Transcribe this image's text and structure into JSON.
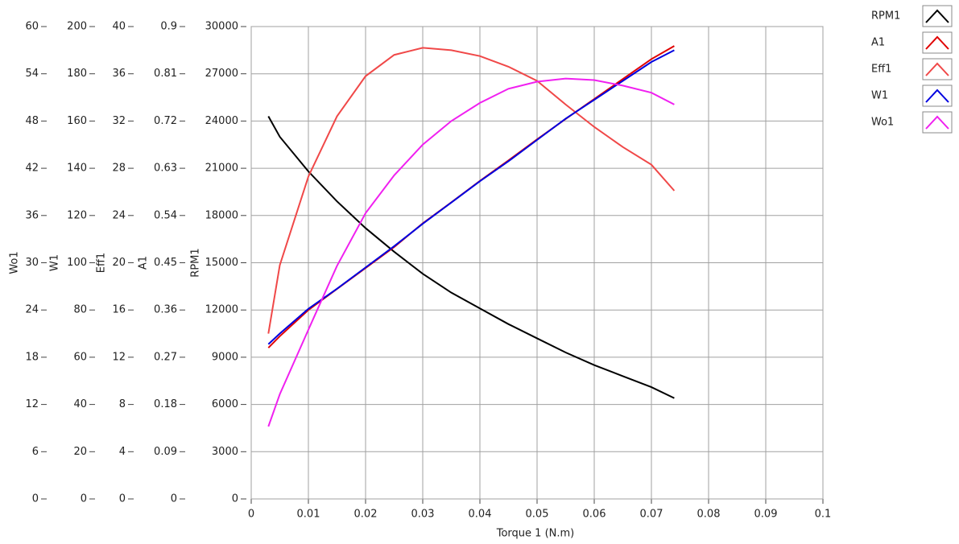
{
  "chart_data": {
    "type": "line",
    "xlabel": "Torque 1 (N.m)",
    "x": [
      0.003,
      0.005,
      0.01,
      0.015,
      0.02,
      0.025,
      0.03,
      0.035,
      0.04,
      0.045,
      0.05,
      0.055,
      0.06,
      0.065,
      0.07,
      0.074
    ],
    "xlim": [
      0,
      0.1
    ],
    "xticks": [
      0,
      0.01,
      0.02,
      0.03,
      0.04,
      0.05,
      0.06,
      0.07,
      0.08,
      0.09,
      0.1
    ],
    "grid": true,
    "legend": "right",
    "y_axes": [
      {
        "label": "Wo1",
        "ylim": [
          0,
          60
        ],
        "yticks": [
          0,
          6,
          12,
          18,
          24,
          30,
          36,
          42,
          48,
          54,
          60
        ]
      },
      {
        "label": "W1",
        "ylim": [
          0,
          200
        ],
        "yticks": [
          0,
          20,
          40,
          60,
          80,
          100,
          120,
          140,
          160,
          180,
          200
        ]
      },
      {
        "label": "Eff1",
        "ylim": [
          0,
          40
        ],
        "yticks": [
          0,
          4,
          8,
          12,
          16,
          20,
          24,
          28,
          32,
          36,
          40
        ]
      },
      {
        "label": "A1",
        "ylim": [
          0,
          0.9
        ],
        "yticks": [
          0,
          0.09,
          0.18,
          0.27,
          0.36,
          0.45,
          0.54,
          0.63,
          0.72,
          0.81,
          0.9
        ]
      },
      {
        "label": "RPM1",
        "ylim": [
          0,
          30000
        ],
        "yticks": [
          0,
          3000,
          6000,
          9000,
          12000,
          15000,
          18000,
          21000,
          24000,
          27000,
          30000
        ]
      }
    ],
    "series": [
      {
        "name": "RPM1",
        "color": "#000000",
        "axis": 4,
        "values": [
          24300,
          23000,
          20800,
          18900,
          17200,
          15700,
          14300,
          13100,
          12100,
          11100,
          10200,
          9300,
          8500,
          7800,
          7100,
          6400
        ]
      },
      {
        "name": "A1",
        "color": "#e00000",
        "axis": 3,
        "values": [
          0.288,
          0.31,
          0.36,
          0.4,
          0.44,
          0.48,
          0.525,
          0.565,
          0.606,
          0.645,
          0.685,
          0.724,
          0.762,
          0.8,
          0.838,
          0.863
        ]
      },
      {
        "name": "Eff1",
        "color": "#f04848",
        "axis": 2,
        "values": [
          14.0,
          19.8,
          27.3,
          32.4,
          35.8,
          37.6,
          38.2,
          38.0,
          37.5,
          36.6,
          35.4,
          33.4,
          31.5,
          29.8,
          28.3,
          26.1
        ]
      },
      {
        "name": "W1",
        "color": "#0000e0",
        "axis": 1,
        "values": [
          65.5,
          70,
          80.5,
          89,
          98,
          107,
          116.5,
          125.5,
          134.5,
          143,
          152,
          161,
          169,
          177,
          185,
          190
        ]
      },
      {
        "name": "Wo1",
        "color": "#f020f0",
        "axis": 0,
        "values": [
          9.2,
          13.3,
          21.5,
          29.6,
          36.3,
          41.1,
          45.0,
          48.0,
          50.3,
          52.1,
          53.0,
          53.4,
          53.2,
          52.5,
          51.6,
          50.1
        ]
      }
    ]
  }
}
